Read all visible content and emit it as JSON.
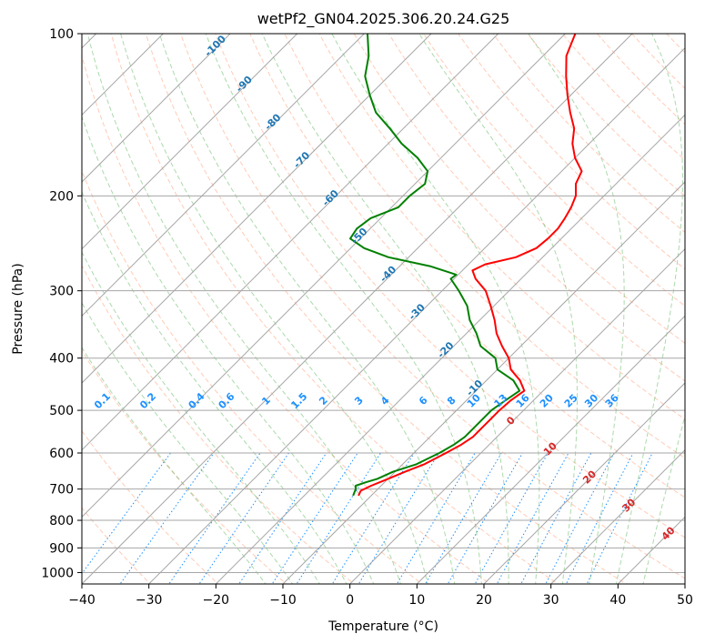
{
  "chart_data": {
    "type": "line",
    "title": "wetPf2_GN04.2025.306.20.24.G25",
    "xlabel": "Temperature (°C)",
    "ylabel": "Pressure (hPa)",
    "xlim": [
      -40,
      50
    ],
    "ylim": [
      1050,
      100
    ],
    "x_ticks": [
      -40,
      -30,
      -20,
      -10,
      0,
      10,
      20,
      30,
      40,
      50
    ],
    "y_ticks": [
      1000,
      900,
      800,
      700,
      600,
      500,
      400,
      300,
      200,
      100
    ],
    "isotherm_skew_deg": 45,
    "colors": {
      "temperature": "#ff0000",
      "dewpoint": "#008000",
      "isotherm": "#a6a6a6",
      "dry_adiabat": "#ffa07a",
      "moist_adiabat": "#2ca02c",
      "mixing_ratio": "#1e90ff",
      "dry_label": "#1f77b4",
      "wet_label": "#d62728",
      "zero_label": "#808080"
    },
    "series": [
      {
        "name": "Temperature",
        "color": "#ff0000",
        "points": [
          [
            720,
            -11.9
          ],
          [
            705,
            -12.3
          ],
          [
            690,
            -11.5
          ],
          [
            670,
            -10.0
          ],
          [
            650,
            -8.5
          ],
          [
            630,
            -6.8
          ],
          [
            600,
            -5.2
          ],
          [
            580,
            -4.2
          ],
          [
            560,
            -3.6
          ],
          [
            540,
            -3.6
          ],
          [
            520,
            -3.6
          ],
          [
            500,
            -3.6
          ],
          [
            480,
            -3.4
          ],
          [
            460,
            -2.8
          ],
          [
            440,
            -5.0
          ],
          [
            420,
            -8.0
          ],
          [
            400,
            -10.0
          ],
          [
            380,
            -12.8
          ],
          [
            360,
            -15.5
          ],
          [
            340,
            -17.8
          ],
          [
            320,
            -20.5
          ],
          [
            300,
            -23.5
          ],
          [
            285,
            -26.8
          ],
          [
            275,
            -28.5
          ],
          [
            268,
            -27.5
          ],
          [
            260,
            -24.0
          ],
          [
            250,
            -22.3
          ],
          [
            240,
            -22.0
          ],
          [
            230,
            -22.0
          ],
          [
            220,
            -22.5
          ],
          [
            210,
            -23.2
          ],
          [
            200,
            -24.2
          ],
          [
            190,
            -26.0
          ],
          [
            180,
            -27.0
          ],
          [
            170,
            -30.0
          ],
          [
            160,
            -32.5
          ],
          [
            150,
            -34.5
          ],
          [
            140,
            -37.5
          ],
          [
            130,
            -40.5
          ],
          [
            120,
            -43.5
          ],
          [
            110,
            -46.5
          ],
          [
            100,
            -48.5
          ]
        ]
      },
      {
        "name": "Dewpoint",
        "color": "#008000",
        "points": [
          [
            720,
            -12.7
          ],
          [
            700,
            -13.3
          ],
          [
            690,
            -13.8
          ],
          [
            680,
            -12.8
          ],
          [
            670,
            -11.6
          ],
          [
            650,
            -10.3
          ],
          [
            630,
            -8.0
          ],
          [
            600,
            -6.2
          ],
          [
            580,
            -5.3
          ],
          [
            560,
            -4.8
          ],
          [
            540,
            -4.8
          ],
          [
            520,
            -4.8
          ],
          [
            500,
            -4.8
          ],
          [
            480,
            -4.2
          ],
          [
            460,
            -3.5
          ],
          [
            440,
            -6.0
          ],
          [
            420,
            -10.0
          ],
          [
            400,
            -12.0
          ],
          [
            380,
            -16.0
          ],
          [
            360,
            -18.5
          ],
          [
            340,
            -21.5
          ],
          [
            320,
            -24.0
          ],
          [
            300,
            -27.5
          ],
          [
            285,
            -30.5
          ],
          [
            280,
            -30.3
          ],
          [
            270,
            -35.5
          ],
          [
            260,
            -43.0
          ],
          [
            250,
            -48.0
          ],
          [
            240,
            -51.5
          ],
          [
            230,
            -52.0
          ],
          [
            220,
            -51.5
          ],
          [
            210,
            -49.0
          ],
          [
            200,
            -49.0
          ],
          [
            190,
            -48.5
          ],
          [
            180,
            -50.0
          ],
          [
            170,
            -53.5
          ],
          [
            160,
            -58.0
          ],
          [
            150,
            -62.0
          ],
          [
            140,
            -66.5
          ],
          [
            130,
            -70.0
          ],
          [
            120,
            -73.5
          ],
          [
            110,
            -76.0
          ],
          [
            100,
            -79.5
          ]
        ]
      }
    ],
    "dry_adiabat_labels": [
      "-100",
      "-90",
      "-80",
      "-70",
      "-60",
      "-50",
      "-40",
      "-30",
      "-20",
      "-10"
    ],
    "moist_adiabat_labels": [
      "0",
      "10",
      "20",
      "30",
      "40"
    ],
    "mixing_ratio_labels": [
      "0.1",
      "0.2",
      "0.4",
      "0.6",
      "1",
      "1.5",
      "2",
      "3",
      "4",
      "6",
      "8",
      "10",
      "13",
      "16",
      "20",
      "25",
      "30",
      "36"
    ]
  }
}
